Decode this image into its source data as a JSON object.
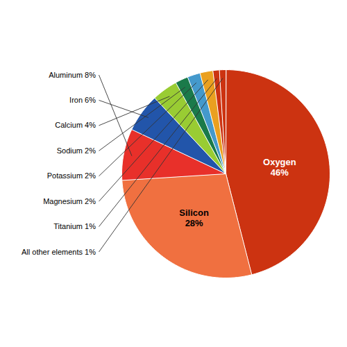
{
  "chart_data": {
    "type": "pie",
    "categories": [
      "Oxygen\n46%",
      "Silicon\n28%",
      "Aluminum 8%",
      "Iron 6%",
      "Calcium 4%",
      "Sodium 2%",
      "Potassium 2%",
      "Magnesium 2%",
      "Titanium 1%",
      "All other elements 1%"
    ],
    "values": [
      46,
      28,
      8,
      6,
      4,
      2,
      2,
      2,
      1,
      1
    ],
    "colors": [
      "#CC3311",
      "#F07040",
      "#E8302A",
      "#2255AA",
      "#99CC33",
      "#1A7A4A",
      "#4499CC",
      "#EAA020",
      "#CC3311",
      "#CC3311"
    ]
  }
}
